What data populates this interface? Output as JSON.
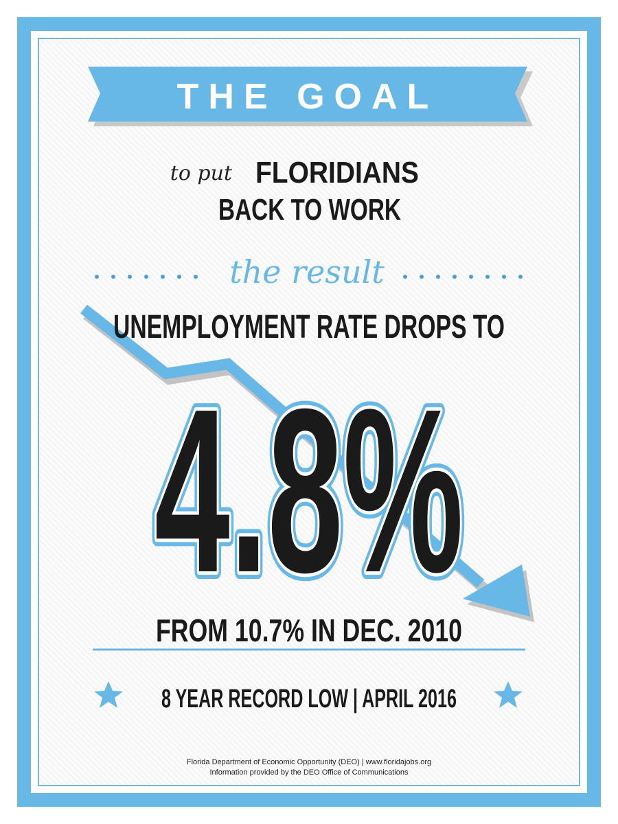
{
  "banner": {
    "title": "THE GOAL"
  },
  "goal": {
    "lead": "to put",
    "line1": "FLORIDIANS",
    "line2": "BACK TO WORK"
  },
  "result": {
    "label": "the result",
    "headline": "UNEMPLOYMENT RATE DROPS TO",
    "rate": "4.8%",
    "comparison": "FROM 10.7% IN DEC. 2010",
    "note": "8 YEAR RECORD LOW | APRIL 2016"
  },
  "footer": {
    "line1": "Florida Department of Economic Opportunity (DEO) | www.floridajobs.org",
    "line2": "Information provided by the DEO Office of Communications"
  }
}
